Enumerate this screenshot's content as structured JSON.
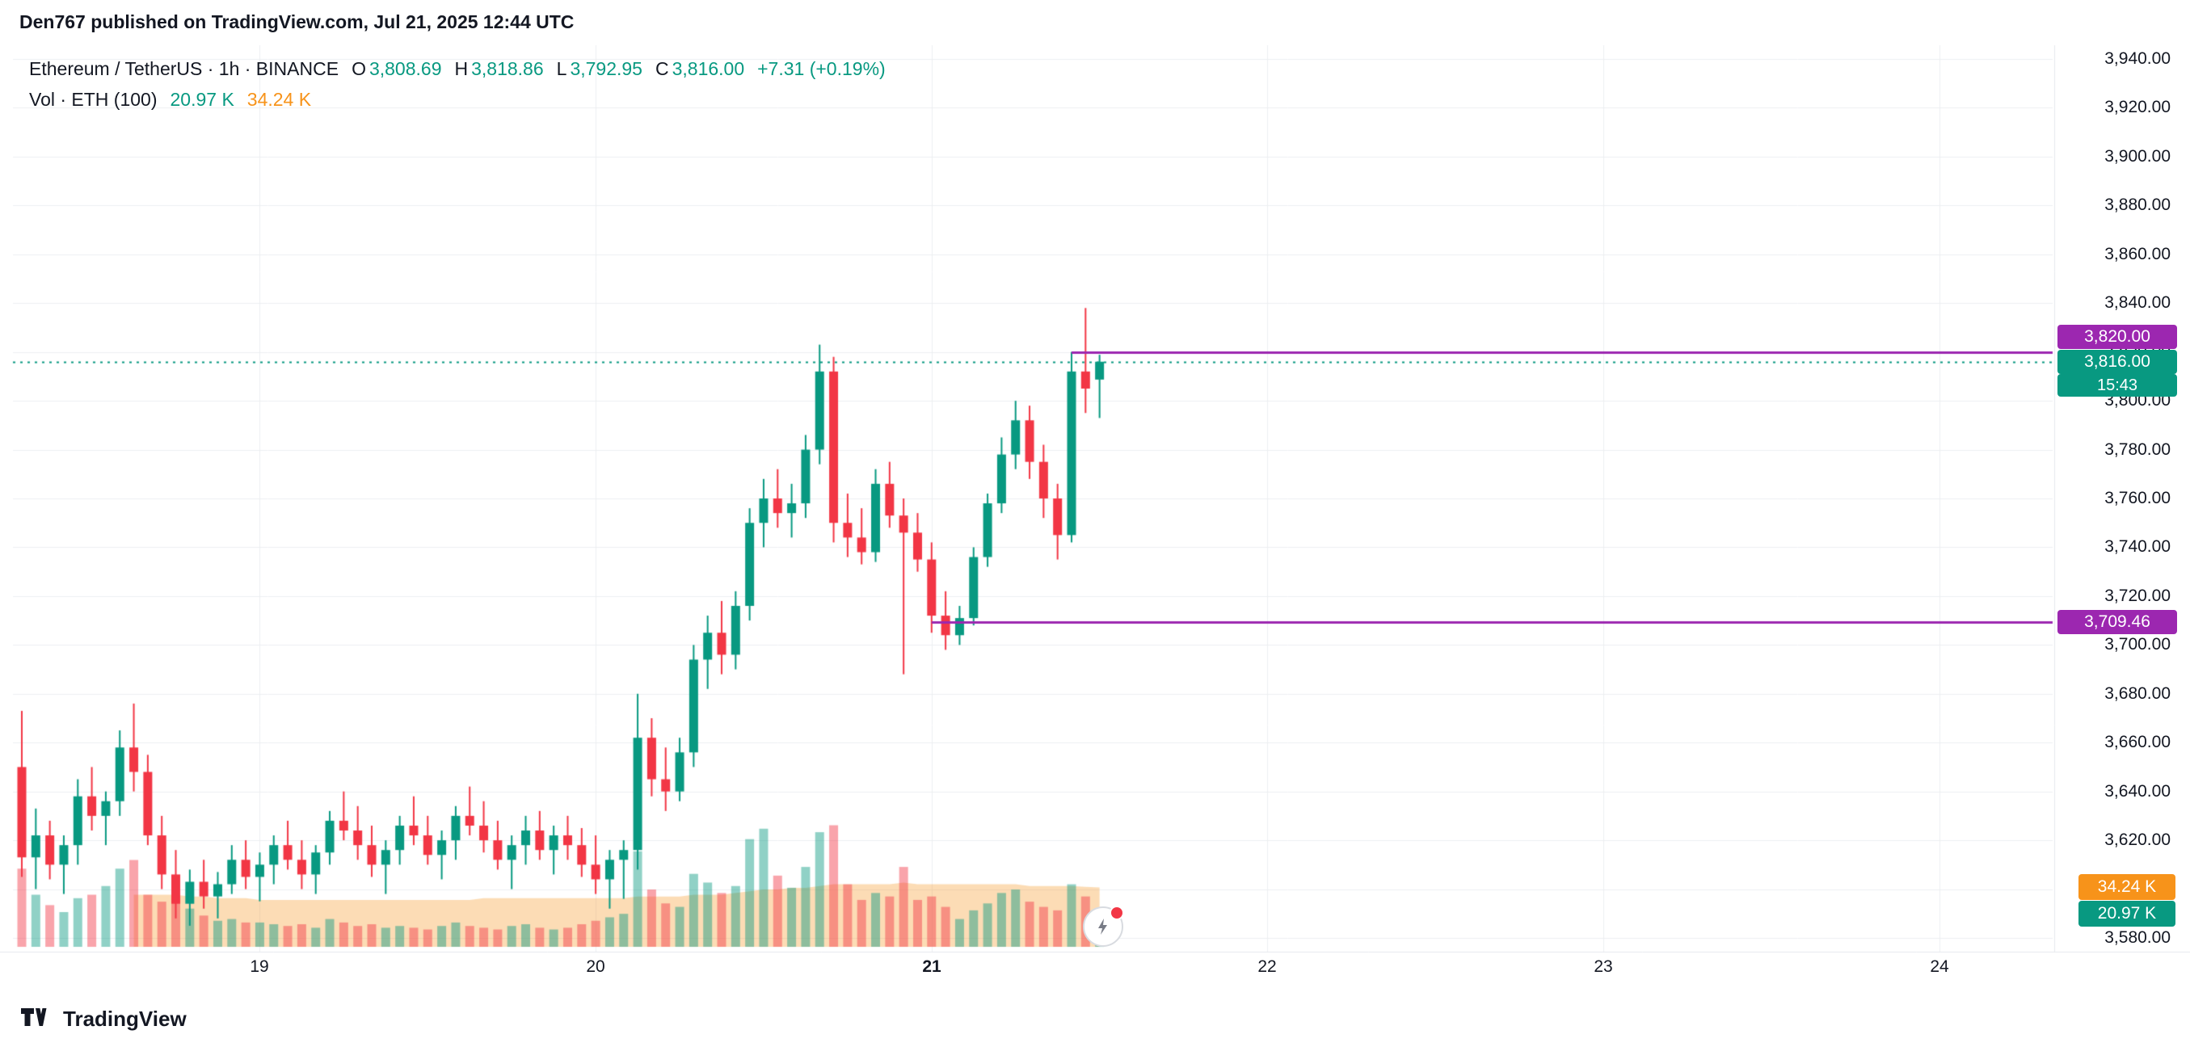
{
  "header": {
    "published_line": "Den767 published on TradingView.com, Jul 21, 2025 12:44 UTC"
  },
  "legend": {
    "symbol": "Ethereum / TetherUS · 1h · BINANCE",
    "ohlc": {
      "o_label": "O",
      "o": "3,808.69",
      "h_label": "H",
      "h": "3,818.86",
      "l_label": "L",
      "l": "3,792.95",
      "c_label": "C",
      "c": "3,816.00"
    },
    "change": "+7.31 (+0.19%)",
    "vol": {
      "label": "Vol · ETH (100)",
      "current": "20.97 K",
      "ma": "34.24 K"
    }
  },
  "axis": {
    "price_labels": [
      "3,940.00",
      "3,920.00",
      "3,900.00",
      "3,880.00",
      "3,860.00",
      "3,840.00",
      "3,820.00",
      "3,800.00",
      "3,780.00",
      "3,760.00",
      "3,740.00",
      "3,720.00",
      "3,700.00",
      "3,680.00",
      "3,660.00",
      "3,640.00",
      "3,620.00",
      "3,600.00",
      "3,580.00"
    ]
  },
  "footer": {
    "brand": "TradingView"
  },
  "colors": {
    "up": "#089981",
    "down": "#F23645",
    "vol_up": "rgba(8,153,129,0.45)",
    "vol_down": "rgba(242,54,69,0.45)",
    "vol_ma_area": "rgba(247,147,26,0.32)",
    "level_line": "#9C27B0",
    "current_line": "#089981",
    "grid": "#EDEFF2",
    "pane_border": "#E6E8EC",
    "text": "#131722"
  },
  "chart_data": {
    "type": "candlestick",
    "symbol": "Ethereum / TetherUS",
    "exchange": "BINANCE",
    "interval": "1h",
    "price_axis": {
      "min": 3580,
      "max": 3940,
      "grid_step": 20
    },
    "volume_unit": "K",
    "candles": [
      [
        3650,
        3673,
        3605,
        3613,
        45
      ],
      [
        3613,
        3633,
        3600,
        3622,
        30
      ],
      [
        3622,
        3628,
        3604,
        3610,
        24
      ],
      [
        3610,
        3622,
        3598,
        3618,
        20
      ],
      [
        3618,
        3645,
        3610,
        3638,
        28
      ],
      [
        3638,
        3650,
        3624,
        3630,
        30
      ],
      [
        3630,
        3640,
        3618,
        3636,
        35
      ],
      [
        3636,
        3665,
        3630,
        3658,
        45
      ],
      [
        3658,
        3676,
        3640,
        3648,
        50
      ],
      [
        3648,
        3655,
        3618,
        3622,
        30
      ],
      [
        3622,
        3630,
        3600,
        3606,
        26
      ],
      [
        3606,
        3616,
        3588,
        3594,
        32
      ],
      [
        3594,
        3608,
        3585,
        3603,
        22
      ],
      [
        3603,
        3612,
        3592,
        3597,
        18
      ],
      [
        3597,
        3607,
        3588,
        3602,
        15
      ],
      [
        3602,
        3618,
        3598,
        3612,
        16
      ],
      [
        3612,
        3620,
        3600,
        3605,
        14
      ],
      [
        3605,
        3615,
        3595,
        3610,
        14
      ],
      [
        3610,
        3622,
        3602,
        3618,
        13
      ],
      [
        3618,
        3628,
        3608,
        3612,
        12
      ],
      [
        3612,
        3620,
        3600,
        3606,
        13
      ],
      [
        3606,
        3618,
        3598,
        3615,
        11
      ],
      [
        3615,
        3632,
        3610,
        3628,
        16
      ],
      [
        3628,
        3640,
        3620,
        3624,
        14
      ],
      [
        3624,
        3634,
        3612,
        3618,
        12
      ],
      [
        3618,
        3626,
        3605,
        3610,
        13
      ],
      [
        3610,
        3620,
        3598,
        3616,
        11
      ],
      [
        3616,
        3630,
        3610,
        3626,
        12
      ],
      [
        3626,
        3638,
        3618,
        3622,
        11
      ],
      [
        3622,
        3630,
        3610,
        3614,
        10
      ],
      [
        3614,
        3624,
        3604,
        3620,
        12
      ],
      [
        3620,
        3634,
        3612,
        3630,
        14
      ],
      [
        3630,
        3642,
        3622,
        3626,
        12
      ],
      [
        3626,
        3636,
        3615,
        3620,
        11
      ],
      [
        3620,
        3628,
        3608,
        3612,
        10
      ],
      [
        3612,
        3622,
        3600,
        3618,
        12
      ],
      [
        3618,
        3630,
        3610,
        3624,
        13
      ],
      [
        3624,
        3632,
        3612,
        3616,
        11
      ],
      [
        3616,
        3626,
        3606,
        3622,
        10
      ],
      [
        3622,
        3630,
        3612,
        3618,
        11
      ],
      [
        3618,
        3625,
        3605,
        3610,
        13
      ],
      [
        3610,
        3622,
        3598,
        3604,
        15
      ],
      [
        3604,
        3616,
        3592,
        3612,
        17
      ],
      [
        3612,
        3620,
        3596,
        3616,
        19
      ],
      [
        3616,
        3680,
        3608,
        3662,
        55
      ],
      [
        3662,
        3670,
        3638,
        3645,
        33
      ],
      [
        3645,
        3658,
        3632,
        3640,
        25
      ],
      [
        3640,
        3662,
        3636,
        3656,
        23
      ],
      [
        3656,
        3700,
        3650,
        3694,
        42
      ],
      [
        3694,
        3712,
        3682,
        3705,
        37
      ],
      [
        3705,
        3718,
        3688,
        3696,
        31
      ],
      [
        3696,
        3722,
        3690,
        3716,
        35
      ],
      [
        3716,
        3756,
        3710,
        3750,
        62
      ],
      [
        3750,
        3768,
        3740,
        3760,
        68
      ],
      [
        3760,
        3772,
        3748,
        3754,
        41
      ],
      [
        3754,
        3766,
        3744,
        3758,
        34
      ],
      [
        3758,
        3786,
        3752,
        3780,
        46
      ],
      [
        3780,
        3823,
        3774,
        3812,
        66
      ],
      [
        3812,
        3818,
        3742,
        3750,
        70
      ],
      [
        3750,
        3762,
        3736,
        3744,
        36
      ],
      [
        3744,
        3756,
        3733,
        3738,
        27
      ],
      [
        3738,
        3772,
        3734,
        3766,
        31
      ],
      [
        3766,
        3775,
        3748,
        3753,
        29
      ],
      [
        3753,
        3760,
        3688,
        3746,
        46
      ],
      [
        3746,
        3754,
        3730,
        3735,
        27
      ],
      [
        3735,
        3742,
        3705,
        3712,
        29
      ],
      [
        3712,
        3722,
        3698,
        3704,
        23
      ],
      [
        3704,
        3716,
        3700,
        3711,
        16
      ],
      [
        3711,
        3740,
        3708,
        3736,
        21
      ],
      [
        3736,
        3762,
        3732,
        3758,
        25
      ],
      [
        3758,
        3785,
        3754,
        3778,
        31
      ],
      [
        3778,
        3800,
        3772,
        3792,
        33
      ],
      [
        3792,
        3798,
        3768,
        3775,
        26
      ],
      [
        3775,
        3782,
        3752,
        3760,
        23
      ],
      [
        3760,
        3766,
        3735,
        3745,
        21
      ],
      [
        3745,
        3820,
        3742,
        3812,
        36
      ],
      [
        3812,
        3838,
        3795,
        3805,
        29
      ],
      [
        3808.69,
        3818.86,
        3792.95,
        3816,
        20.97
      ]
    ],
    "vol_ma_100": [
      null,
      null,
      null,
      null,
      null,
      null,
      null,
      null,
      30,
      30,
      30,
      30,
      29,
      29,
      28,
      28,
      28,
      27,
      27,
      27,
      27,
      27,
      27,
      27,
      27,
      27,
      27,
      27,
      27,
      27,
      27,
      27,
      27,
      28,
      28,
      28,
      28,
      28,
      28,
      28,
      28,
      28,
      28,
      28,
      29,
      29,
      29,
      29,
      30,
      30,
      30,
      31,
      32,
      33,
      33,
      34,
      34,
      35,
      36,
      36,
      36,
      36,
      36,
      37,
      36,
      36,
      36,
      36,
      36,
      36,
      36,
      36,
      35,
      35,
      35,
      35,
      34.5,
      34.24
    ],
    "levels": [
      {
        "price": 3820.0,
        "label": "3,820.00",
        "start_index": 75
      },
      {
        "price": 3709.46,
        "label": "3,709.46",
        "start_index": 65
      }
    ],
    "current_price": {
      "value": 3816.0,
      "label": "3,816.00",
      "countdown": "15:43"
    },
    "volume_badges": {
      "ma": "34.24 K",
      "last": "20.97 K"
    },
    "x_axis": {
      "labels": [
        {
          "text": "19",
          "candle_index": 17,
          "bold": false
        },
        {
          "text": "20",
          "candle_index": 41,
          "bold": false
        },
        {
          "text": "21",
          "candle_index": 65,
          "bold": true
        },
        {
          "text": "22",
          "candle_index": 89,
          "bold": false
        },
        {
          "text": "23",
          "candle_index": 113,
          "bold": false
        },
        {
          "text": "24",
          "candle_index": 137,
          "bold": false
        }
      ]
    }
  }
}
